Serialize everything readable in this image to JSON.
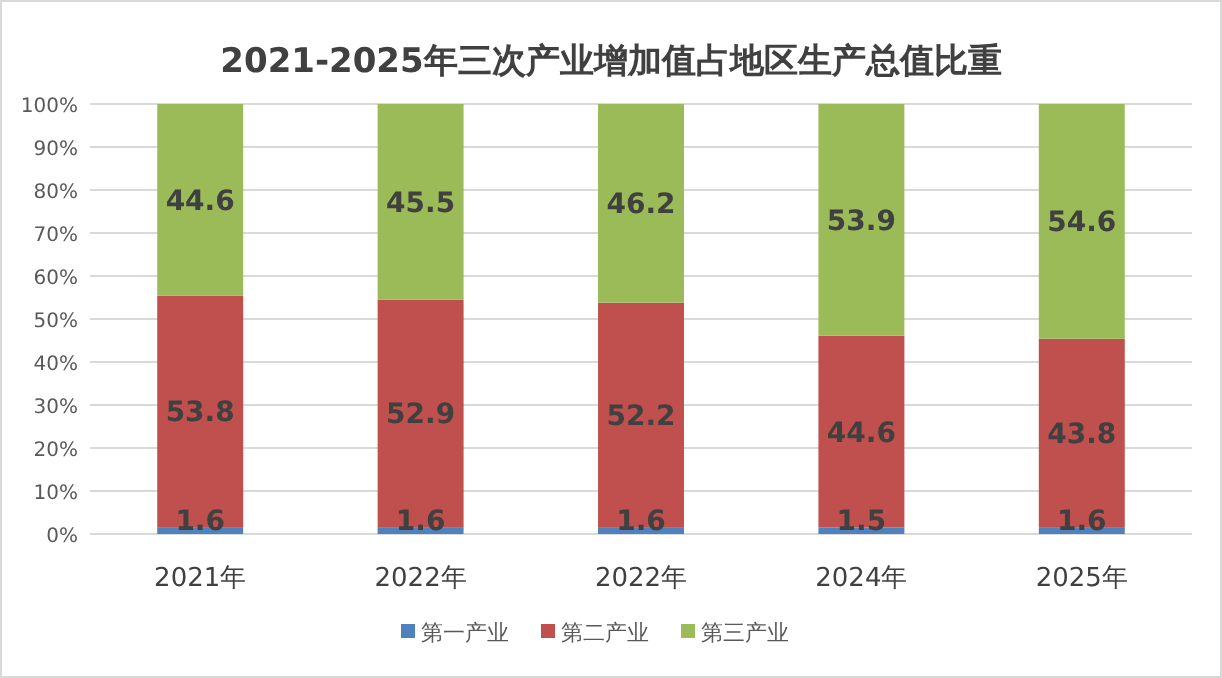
{
  "chart_data": {
    "type": "bar",
    "title": "2021-2025年三次产业增加值占地区生产总值比重",
    "categories": [
      "2021年",
      "2022年",
      "2022年",
      "2024年",
      "2025年"
    ],
    "stacked": true,
    "series": [
      {
        "name": "第一产业",
        "color": "#4f81bd",
        "values": [
          1.6,
          1.6,
          1.6,
          1.5,
          1.6
        ]
      },
      {
        "name": "第二产业",
        "color": "#c0504d",
        "values": [
          53.8,
          52.9,
          52.2,
          44.6,
          43.8
        ]
      },
      {
        "name": "第三产业",
        "color": "#9bbb59",
        "values": [
          44.6,
          45.5,
          46.2,
          53.9,
          54.6
        ]
      }
    ],
    "ylim": [
      0,
      100
    ],
    "yticks": [
      {
        "value": 0,
        "label": "0%"
      },
      {
        "value": 10,
        "label": "10%"
      },
      {
        "value": 20,
        "label": "20%"
      },
      {
        "value": 30,
        "label": "30%"
      },
      {
        "value": 40,
        "label": "40%"
      },
      {
        "value": 50,
        "label": "50%"
      },
      {
        "value": 60,
        "label": "60%"
      },
      {
        "value": 70,
        "label": "70%"
      },
      {
        "value": 80,
        "label": "80%"
      },
      {
        "value": 90,
        "label": "90%"
      },
      {
        "value": 100,
        "label": "100%"
      }
    ],
    "grid": "y",
    "legend": "bottom",
    "data_labels": true
  }
}
